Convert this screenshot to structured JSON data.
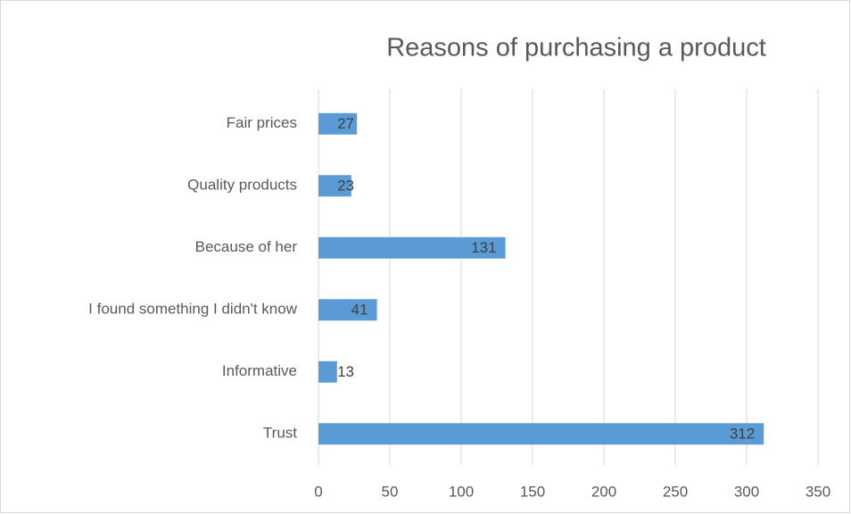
{
  "chart_data": {
    "type": "barh",
    "title": "Reasons of purchasing a product",
    "categories": [
      "Fair prices",
      "Quality products",
      "Because of her",
      "I found something I didn't know",
      "Informative",
      "Trust"
    ],
    "values": [
      27,
      23,
      131,
      41,
      13,
      312
    ],
    "color": "#5b9bd5",
    "xlim": [
      0,
      350
    ],
    "xticks": [
      0,
      50,
      100,
      150,
      200,
      250,
      300,
      350
    ],
    "grid": true
  }
}
